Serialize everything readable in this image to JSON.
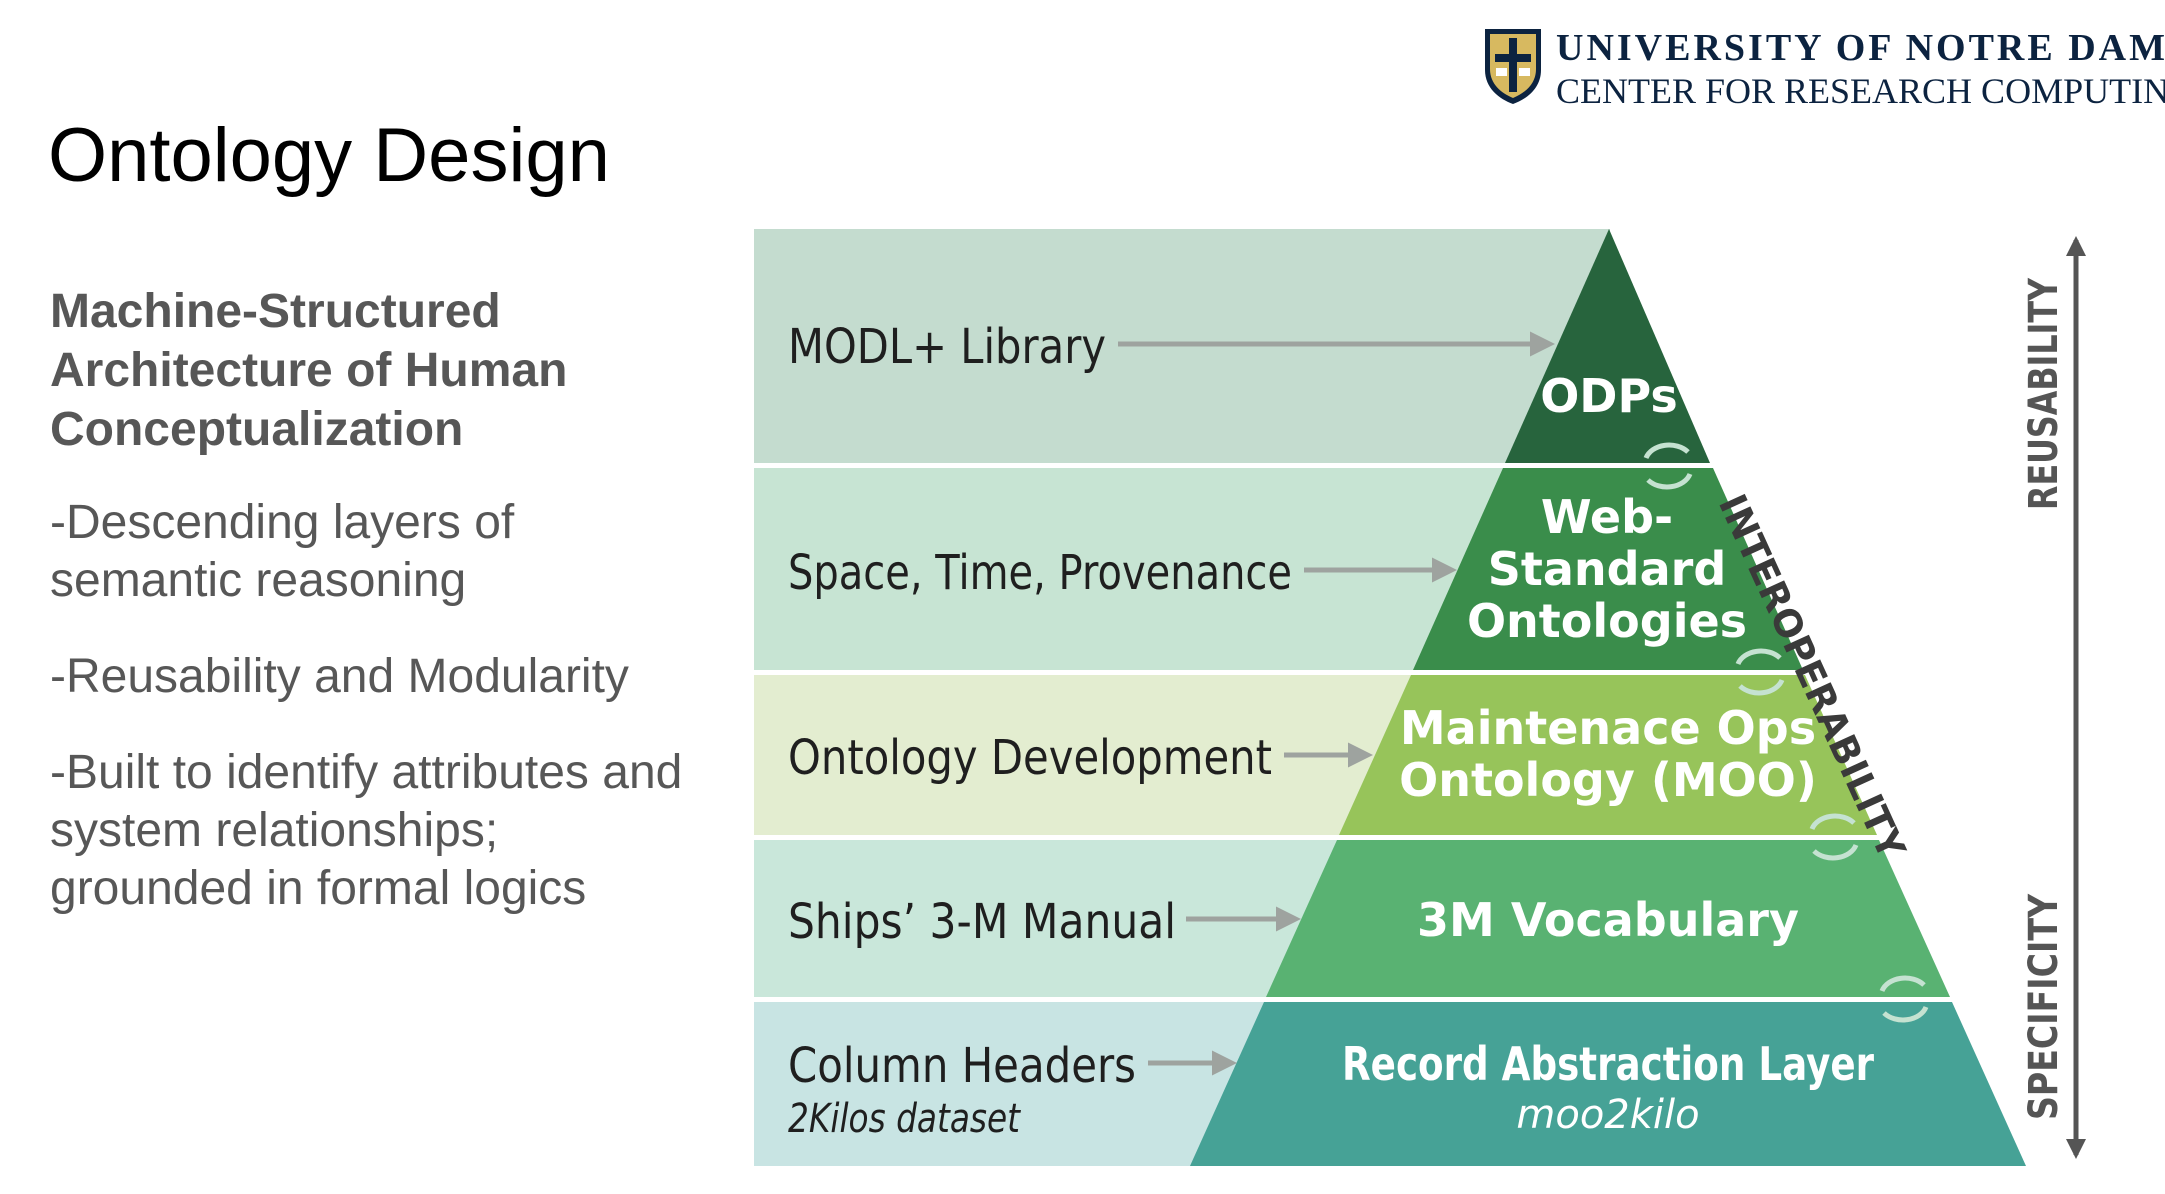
{
  "logo": {
    "line1": "UNIVERSITY OF NOTRE DAME",
    "line2": "CENTER FOR RESEARCH COMPUTING"
  },
  "title": "Ontology Design",
  "subtitle": "Machine-Structured Architecture of Human Conceptualization",
  "bullets": [
    "-Descending layers of semantic reasoning",
    "-Reusability and Modularity",
    "-Built to identify attributes and system relationships; grounded in formal logics"
  ],
  "pyramid": {
    "layers": [
      {
        "left_label": "MODL+ Library",
        "left_sublabel": "",
        "pyramid_label": [
          "ODPs"
        ],
        "pyramid_sublabel": ""
      },
      {
        "left_label": "Space, Time, Provenance",
        "left_sublabel": "",
        "pyramid_label": [
          "Web-",
          "Standard",
          "Ontologies"
        ],
        "pyramid_sublabel": ""
      },
      {
        "left_label": "Ontology Development",
        "left_sublabel": "",
        "pyramid_label": [
          "Maintenace Ops",
          "Ontology (MOO)"
        ],
        "pyramid_sublabel": ""
      },
      {
        "left_label": "Ships’ 3-M Manual",
        "left_sublabel": "",
        "pyramid_label": [
          "3M Vocabulary"
        ],
        "pyramid_sublabel": ""
      },
      {
        "left_label": "Column Headers",
        "left_sublabel": "2Kilos dataset",
        "pyramid_label": [
          "Record Abstraction Layer"
        ],
        "pyramid_sublabel": "moo2kilo"
      }
    ],
    "interoperability_label": "INTEROPERABILITY",
    "reusability_label": "REUSABILITY",
    "specificity_label": "SPECIFICITY"
  },
  "colors": {
    "band_backgrounds": [
      "#c4dccf",
      "#c7e4d3",
      "#e3edd0",
      "#c9e7da",
      "#c8e4e3"
    ],
    "pyramid_fills": [
      "#27643d",
      "#3a8d4b",
      "#97c45a",
      "#59b272",
      "#46a296"
    ],
    "arrow": "#9ea39f",
    "text_dark": "#1f1f1f",
    "axis": "#555555"
  }
}
